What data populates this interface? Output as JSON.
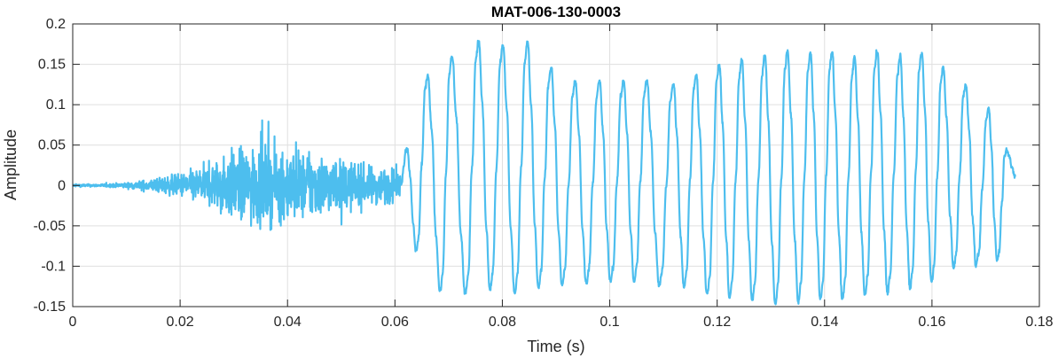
{
  "chart_data": {
    "type": "line",
    "title": "MAT-006-130-0003",
    "xlabel": "Time (s)",
    "ylabel": "Amplitude",
    "xlim": [
      0,
      0.18
    ],
    "ylim": [
      -0.15,
      0.2
    ],
    "x_ticks": [
      0,
      0.02,
      0.04,
      0.06,
      0.08,
      0.1,
      0.12,
      0.14,
      0.16,
      0.18
    ],
    "x_tick_labels": [
      "0",
      "0.02",
      "0.04",
      "0.06",
      "0.08",
      "0.1",
      "0.12",
      "0.14",
      "0.16",
      "0.18"
    ],
    "y_ticks": [
      -0.15,
      -0.1,
      -0.05,
      0,
      0.05,
      0.1,
      0.15,
      0.2
    ],
    "y_tick_labels": [
      "-0.15",
      "-0.1",
      "-0.05",
      "0",
      "0.05",
      "0.1",
      "0.15",
      "0.2"
    ],
    "grid": true,
    "series": [
      {
        "color": "#4DBEEE",
        "signal_end_s": 0.1755,
        "noise_segment": {
          "x_range": [
            0,
            0.061
          ],
          "envelope_points": [
            {
              "x": 0,
              "amp": 0.002
            },
            {
              "x": 0.005,
              "amp": 0.002
            },
            {
              "x": 0.01,
              "amp": 0.004
            },
            {
              "x": 0.015,
              "amp": 0.01
            },
            {
              "x": 0.02,
              "amp": 0.018
            },
            {
              "x": 0.025,
              "amp": 0.03
            },
            {
              "x": 0.03,
              "amp": 0.055
            },
            {
              "x": 0.035,
              "amp": 0.06
            },
            {
              "x": 0.04,
              "amp": 0.055
            },
            {
              "x": 0.045,
              "amp": 0.05
            },
            {
              "x": 0.05,
              "amp": 0.04
            },
            {
              "x": 0.055,
              "amp": 0.03
            },
            {
              "x": 0.06,
              "amp": 0.025
            },
            {
              "x": 0.061,
              "amp": 0.02
            }
          ]
        },
        "voiced_peaks": [
          {
            "x": 0.0622,
            "y": 0.045
          },
          {
            "x": 0.066,
            "y": 0.135
          },
          {
            "x": 0.0705,
            "y": 0.158
          },
          {
            "x": 0.0755,
            "y": 0.177
          },
          {
            "x": 0.08,
            "y": 0.172
          },
          {
            "x": 0.0846,
            "y": 0.176
          },
          {
            "x": 0.089,
            "y": 0.145
          },
          {
            "x": 0.0935,
            "y": 0.128
          },
          {
            "x": 0.098,
            "y": 0.128
          },
          {
            "x": 0.1025,
            "y": 0.128
          },
          {
            "x": 0.1068,
            "y": 0.128
          },
          {
            "x": 0.1118,
            "y": 0.125
          },
          {
            "x": 0.116,
            "y": 0.136
          },
          {
            "x": 0.1203,
            "y": 0.149
          },
          {
            "x": 0.1245,
            "y": 0.154
          },
          {
            "x": 0.1288,
            "y": 0.16
          },
          {
            "x": 0.133,
            "y": 0.164
          },
          {
            "x": 0.1373,
            "y": 0.164
          },
          {
            "x": 0.1413,
            "y": 0.165
          },
          {
            "x": 0.1455,
            "y": 0.157
          },
          {
            "x": 0.1497,
            "y": 0.165
          },
          {
            "x": 0.154,
            "y": 0.158
          },
          {
            "x": 0.158,
            "y": 0.165
          },
          {
            "x": 0.162,
            "y": 0.145
          },
          {
            "x": 0.1662,
            "y": 0.125
          },
          {
            "x": 0.1705,
            "y": 0.095
          },
          {
            "x": 0.1738,
            "y": 0.045
          }
        ],
        "voiced_troughs": [
          {
            "x": 0.064,
            "y": -0.08
          },
          {
            "x": 0.0685,
            "y": -0.13
          },
          {
            "x": 0.0732,
            "y": -0.133
          },
          {
            "x": 0.0778,
            "y": -0.128
          },
          {
            "x": 0.0824,
            "y": -0.132
          },
          {
            "x": 0.0868,
            "y": -0.125
          },
          {
            "x": 0.0912,
            "y": -0.122
          },
          {
            "x": 0.0957,
            "y": -0.12
          },
          {
            "x": 0.1002,
            "y": -0.118
          },
          {
            "x": 0.1046,
            "y": -0.118
          },
          {
            "x": 0.1093,
            "y": -0.122
          },
          {
            "x": 0.1139,
            "y": -0.125
          },
          {
            "x": 0.1182,
            "y": -0.133
          },
          {
            "x": 0.1224,
            "y": -0.138
          },
          {
            "x": 0.1266,
            "y": -0.141
          },
          {
            "x": 0.1309,
            "y": -0.146
          },
          {
            "x": 0.1352,
            "y": -0.143
          },
          {
            "x": 0.1393,
            "y": -0.141
          },
          {
            "x": 0.1434,
            "y": -0.139
          },
          {
            "x": 0.1476,
            "y": -0.135
          },
          {
            "x": 0.1518,
            "y": -0.131
          },
          {
            "x": 0.156,
            "y": -0.126
          },
          {
            "x": 0.16,
            "y": -0.118
          },
          {
            "x": 0.1641,
            "y": -0.1
          },
          {
            "x": 0.1683,
            "y": -0.098
          },
          {
            "x": 0.1722,
            "y": -0.092
          },
          {
            "x": 0.1755,
            "y": 0.012
          }
        ]
      }
    ]
  }
}
